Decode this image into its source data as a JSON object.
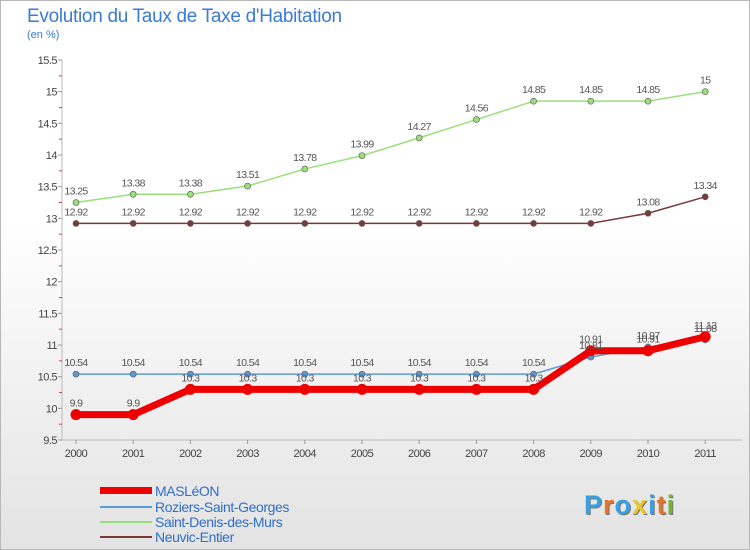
{
  "title": "Evolution du Taux de Taxe d'Habitation",
  "subtitle": "(en %)",
  "logo": {
    "letters": [
      "P",
      "r",
      "o",
      "x",
      "i",
      "t",
      "i"
    ],
    "colors": [
      "#3aa0e0",
      "#e8732a",
      "#3aa0e0",
      "#e8c82a",
      "#3aa0e0",
      "#e8732a",
      "#7ab23a"
    ]
  },
  "chart_data": {
    "type": "line",
    "title": "Evolution du Taux de Taxe d'Habitation",
    "ylabel": "(en %)",
    "ylim": [
      9.5,
      15.5
    ],
    "yticks": [
      "9.5",
      "10",
      "10.5",
      "11",
      "11.5",
      "12",
      "12.5",
      "13",
      "13.5",
      "14",
      "14.5",
      "15",
      "15.5"
    ],
    "categories": [
      "2000",
      "2001",
      "2002",
      "2003",
      "2004",
      "2005",
      "2006",
      "2007",
      "2008",
      "2009",
      "2010",
      "2011"
    ],
    "series": [
      {
        "name": "MASLéON",
        "color": "#ee0000",
        "values": [
          9.9,
          9.9,
          10.3,
          10.3,
          10.3,
          10.3,
          10.3,
          10.3,
          10.3,
          10.91,
          10.91,
          11.13
        ],
        "labels": [
          "9.9",
          "9.9",
          "10.3",
          "10.3",
          "10.3",
          "10.3",
          "10.3",
          "10.3",
          "10.3",
          "10.91",
          "10.91",
          "11.13"
        ]
      },
      {
        "name": "Roziers-Saint-Georges",
        "color": "#5b9bd5",
        "values": [
          10.54,
          10.54,
          10.54,
          10.54,
          10.54,
          10.54,
          10.54,
          10.54,
          10.54,
          10.81,
          10.97,
          11.08
        ],
        "labels": [
          "10.54",
          "10.54",
          "10.54",
          "10.54",
          "10.54",
          "10.54",
          "10.54",
          "10.54",
          "10.54",
          "10.81",
          "10.97",
          "11.08"
        ]
      },
      {
        "name": "Saint-Denis-des-Murs",
        "color": "#99e07a",
        "values": [
          13.25,
          13.38,
          13.38,
          13.51,
          13.78,
          13.99,
          14.27,
          14.56,
          14.85,
          14.85,
          14.85,
          15
        ],
        "labels": [
          "13.25",
          "13.38",
          "13.38",
          "13.51",
          "13.78",
          "13.99",
          "14.27",
          "14.56",
          "14.85",
          "14.85",
          "14.85",
          "15"
        ]
      },
      {
        "name": "Neuvic-Entier",
        "color": "#7a3a3a",
        "values": [
          12.92,
          12.92,
          12.92,
          12.92,
          12.92,
          12.92,
          12.92,
          12.92,
          12.92,
          12.92,
          13.08,
          13.34
        ],
        "labels": [
          "12.92",
          "12.92",
          "12.92",
          "12.92",
          "12.92",
          "12.92",
          "12.92",
          "12.92",
          "12.92",
          "12.92",
          "13.08",
          "13.34"
        ]
      }
    ],
    "legend": [
      "MASLéON",
      "Roziers-Saint-Georges",
      "Saint-Denis-des-Murs",
      "Neuvic-Entier"
    ],
    "legend_position": "bottom-left"
  }
}
